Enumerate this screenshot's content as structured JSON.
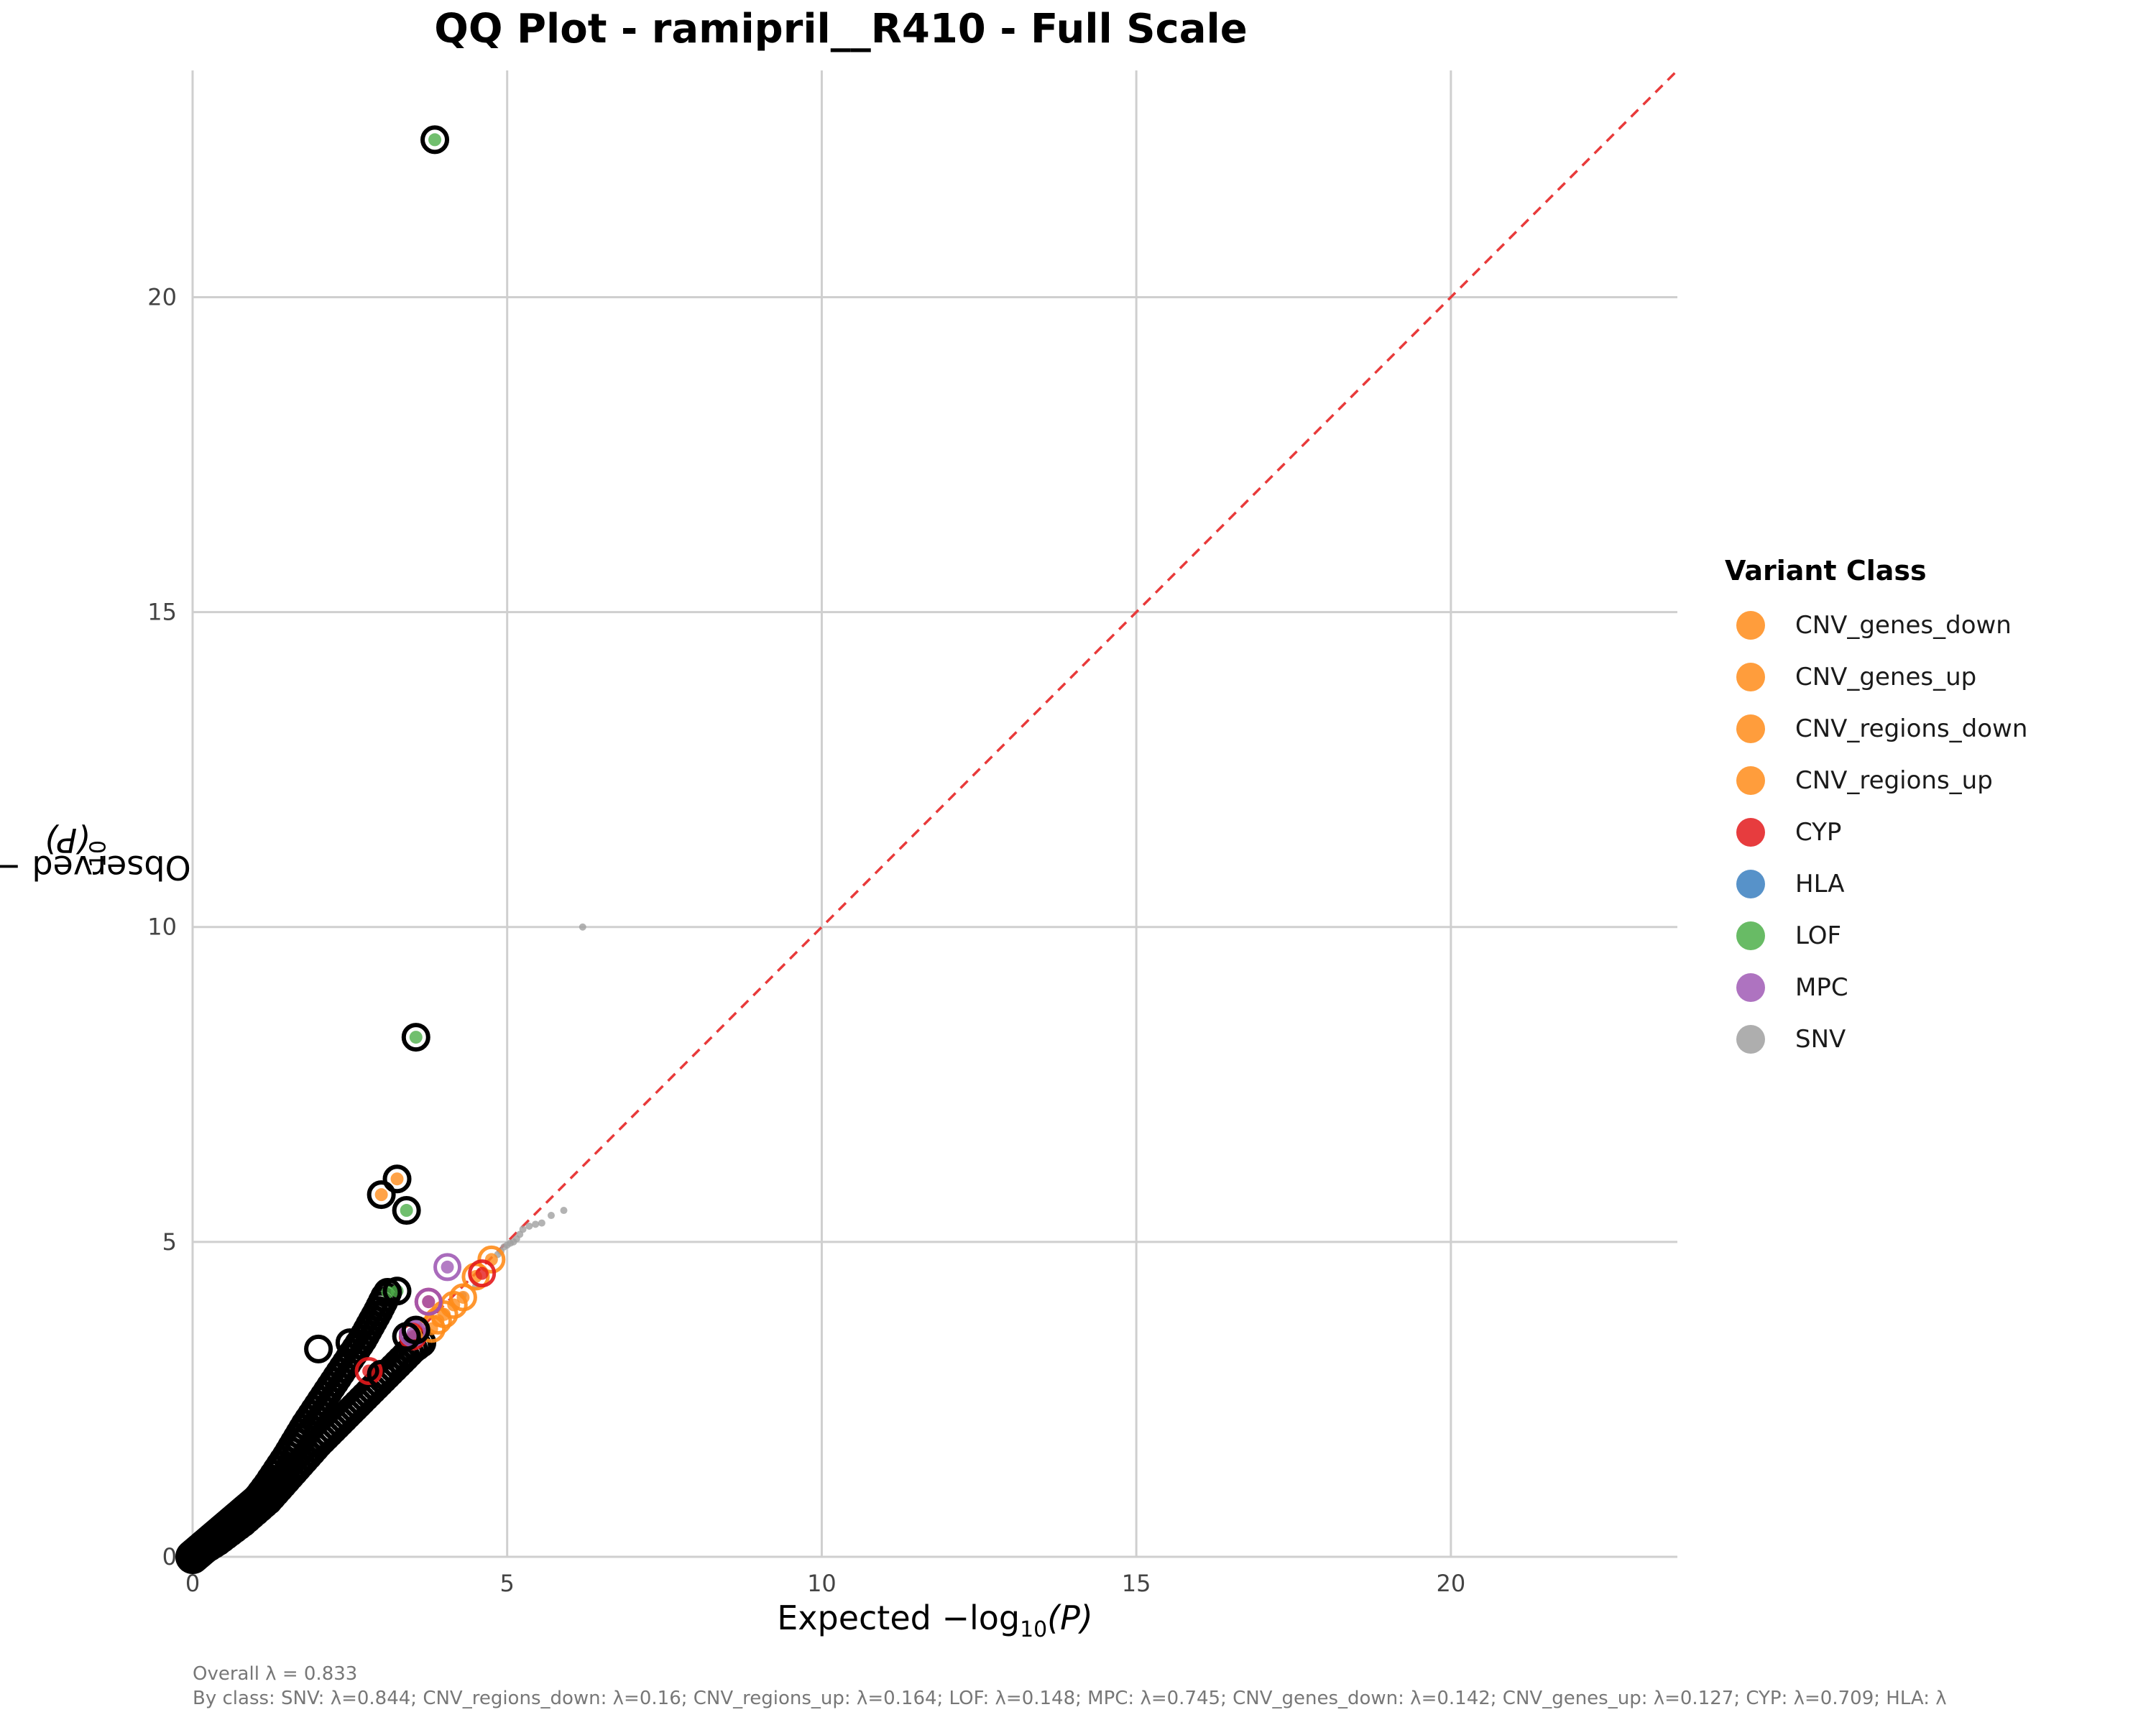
{
  "chart_data": {
    "type": "scatter",
    "title": "QQ Plot - ramipril__R410 - Full Scale",
    "xlabel_prefix": "Expected −log",
    "ylabel_prefix": "Observed −log",
    "axis_sub": "10",
    "axis_suffix": "(P)",
    "xlim": [
      0,
      23.6
    ],
    "ylim": [
      0,
      23.6
    ],
    "xticks": [
      0,
      5,
      10,
      15,
      20
    ],
    "yticks": [
      0,
      5,
      10,
      15,
      20
    ],
    "grid": true,
    "reference_line": {
      "slope": 1,
      "color": "#e83a3a",
      "style": "dashed"
    },
    "legend": {
      "title": "Variant Class",
      "placement": "right",
      "entries": [
        {
          "name": "CNV_genes_down",
          "color": "#ff8c1a"
        },
        {
          "name": "CNV_genes_up",
          "color": "#ff8c1a"
        },
        {
          "name": "CNV_regions_down",
          "color": "#ff8c1a"
        },
        {
          "name": "CNV_regions_up",
          "color": "#ff8c1a"
        },
        {
          "name": "CYP",
          "color": "#e31a1c"
        },
        {
          "name": "HLA",
          "color": "#3a7fc0"
        },
        {
          "name": "LOF",
          "color": "#4daf4a"
        },
        {
          "name": "MPC",
          "color": "#a05bb5"
        },
        {
          "name": "SNV",
          "color": "#a0a0a0"
        }
      ]
    },
    "series": [
      {
        "name": "SNV",
        "color": "#a0a0a0",
        "points": [
          [
            6.2,
            10.0
          ],
          [
            5.9,
            5.5
          ],
          [
            5.7,
            5.42
          ],
          [
            5.55,
            5.3
          ],
          [
            5.45,
            5.28
          ],
          [
            5.35,
            5.25
          ],
          [
            5.25,
            5.2
          ],
          [
            5.2,
            5.12
          ],
          [
            5.15,
            5.05
          ],
          [
            5.1,
            5.0
          ],
          [
            5.05,
            4.98
          ],
          [
            5.0,
            4.95
          ],
          [
            4.95,
            4.92
          ],
          [
            4.9,
            4.85
          ],
          [
            4.85,
            4.8
          ],
          [
            4.5,
            4.3
          ],
          [
            4.3,
            4.15
          ]
        ]
      },
      {
        "name": "CNV_regions_down",
        "color": "#ff8c1a",
        "points": [
          [
            4.75,
            4.72
          ],
          [
            4.5,
            4.45
          ],
          [
            4.3,
            4.12
          ],
          [
            4.15,
            4.0
          ],
          [
            4.0,
            3.85
          ],
          [
            3.9,
            3.75
          ],
          [
            3.8,
            3.62
          ],
          [
            3.25,
            6.0
          ],
          [
            3.0,
            5.75
          ]
        ]
      },
      {
        "name": "CYP",
        "color": "#e31a1c",
        "points": [
          [
            4.6,
            4.5
          ],
          [
            3.75,
            4.05
          ],
          [
            3.5,
            3.5
          ],
          [
            2.8,
            2.95
          ]
        ]
      },
      {
        "name": "LOF",
        "color": "#4daf4a",
        "points": [
          [
            3.85,
            22.5
          ],
          [
            3.55,
            8.25
          ],
          [
            3.4,
            5.5
          ],
          [
            3.1,
            4.2
          ],
          [
            3.25,
            4.22
          ]
        ]
      },
      {
        "name": "MPC",
        "color": "#a05bb5",
        "points": [
          [
            4.05,
            4.6
          ],
          [
            3.75,
            4.05
          ],
          [
            3.5,
            3.55
          ]
        ]
      }
    ],
    "highlighted": [
      [
        3.85,
        22.5
      ],
      [
        3.55,
        8.25
      ],
      [
        3.25,
        6.0
      ],
      [
        3.0,
        5.75
      ],
      [
        3.4,
        5.5
      ],
      [
        3.1,
        4.2
      ],
      [
        3.25,
        4.22
      ],
      [
        2.0,
        3.3
      ],
      [
        2.5,
        3.4
      ],
      [
        3.4,
        3.5
      ],
      [
        3.55,
        3.6
      ],
      [
        3.0,
        2.9
      ]
    ],
    "bulk_high_band": [
      [
        0,
        0
      ],
      [
        0.3,
        0.2
      ],
      [
        0.6,
        0.45
      ],
      [
        0.9,
        0.75
      ],
      [
        1.2,
        1.15
      ],
      [
        1.5,
        1.6
      ],
      [
        1.8,
        2.1
      ],
      [
        2.1,
        2.55
      ],
      [
        2.4,
        3.0
      ],
      [
        2.7,
        3.45
      ],
      [
        2.95,
        3.9
      ],
      [
        3.1,
        4.2
      ]
    ],
    "bulk_low_band": [
      [
        0,
        0
      ],
      [
        0.4,
        0.25
      ],
      [
        0.8,
        0.55
      ],
      [
        1.2,
        0.9
      ],
      [
        1.6,
        1.35
      ],
      [
        2.0,
        1.8
      ],
      [
        2.4,
        2.2
      ],
      [
        2.8,
        2.6
      ],
      [
        3.2,
        3.0
      ],
      [
        3.5,
        3.3
      ],
      [
        3.7,
        3.45
      ]
    ],
    "annotations": {
      "overall": "Overall λ = 0.833",
      "by_class": "By class: SNV: λ=0.844; CNV_regions_down: λ=0.16; CNV_regions_up: λ=0.164; LOF: λ=0.148; MPC: λ=0.745; CNV_genes_down: λ=0.142; CNV_genes_up: λ=0.127; CYP: λ=0.709; HLA: λ"
    }
  }
}
